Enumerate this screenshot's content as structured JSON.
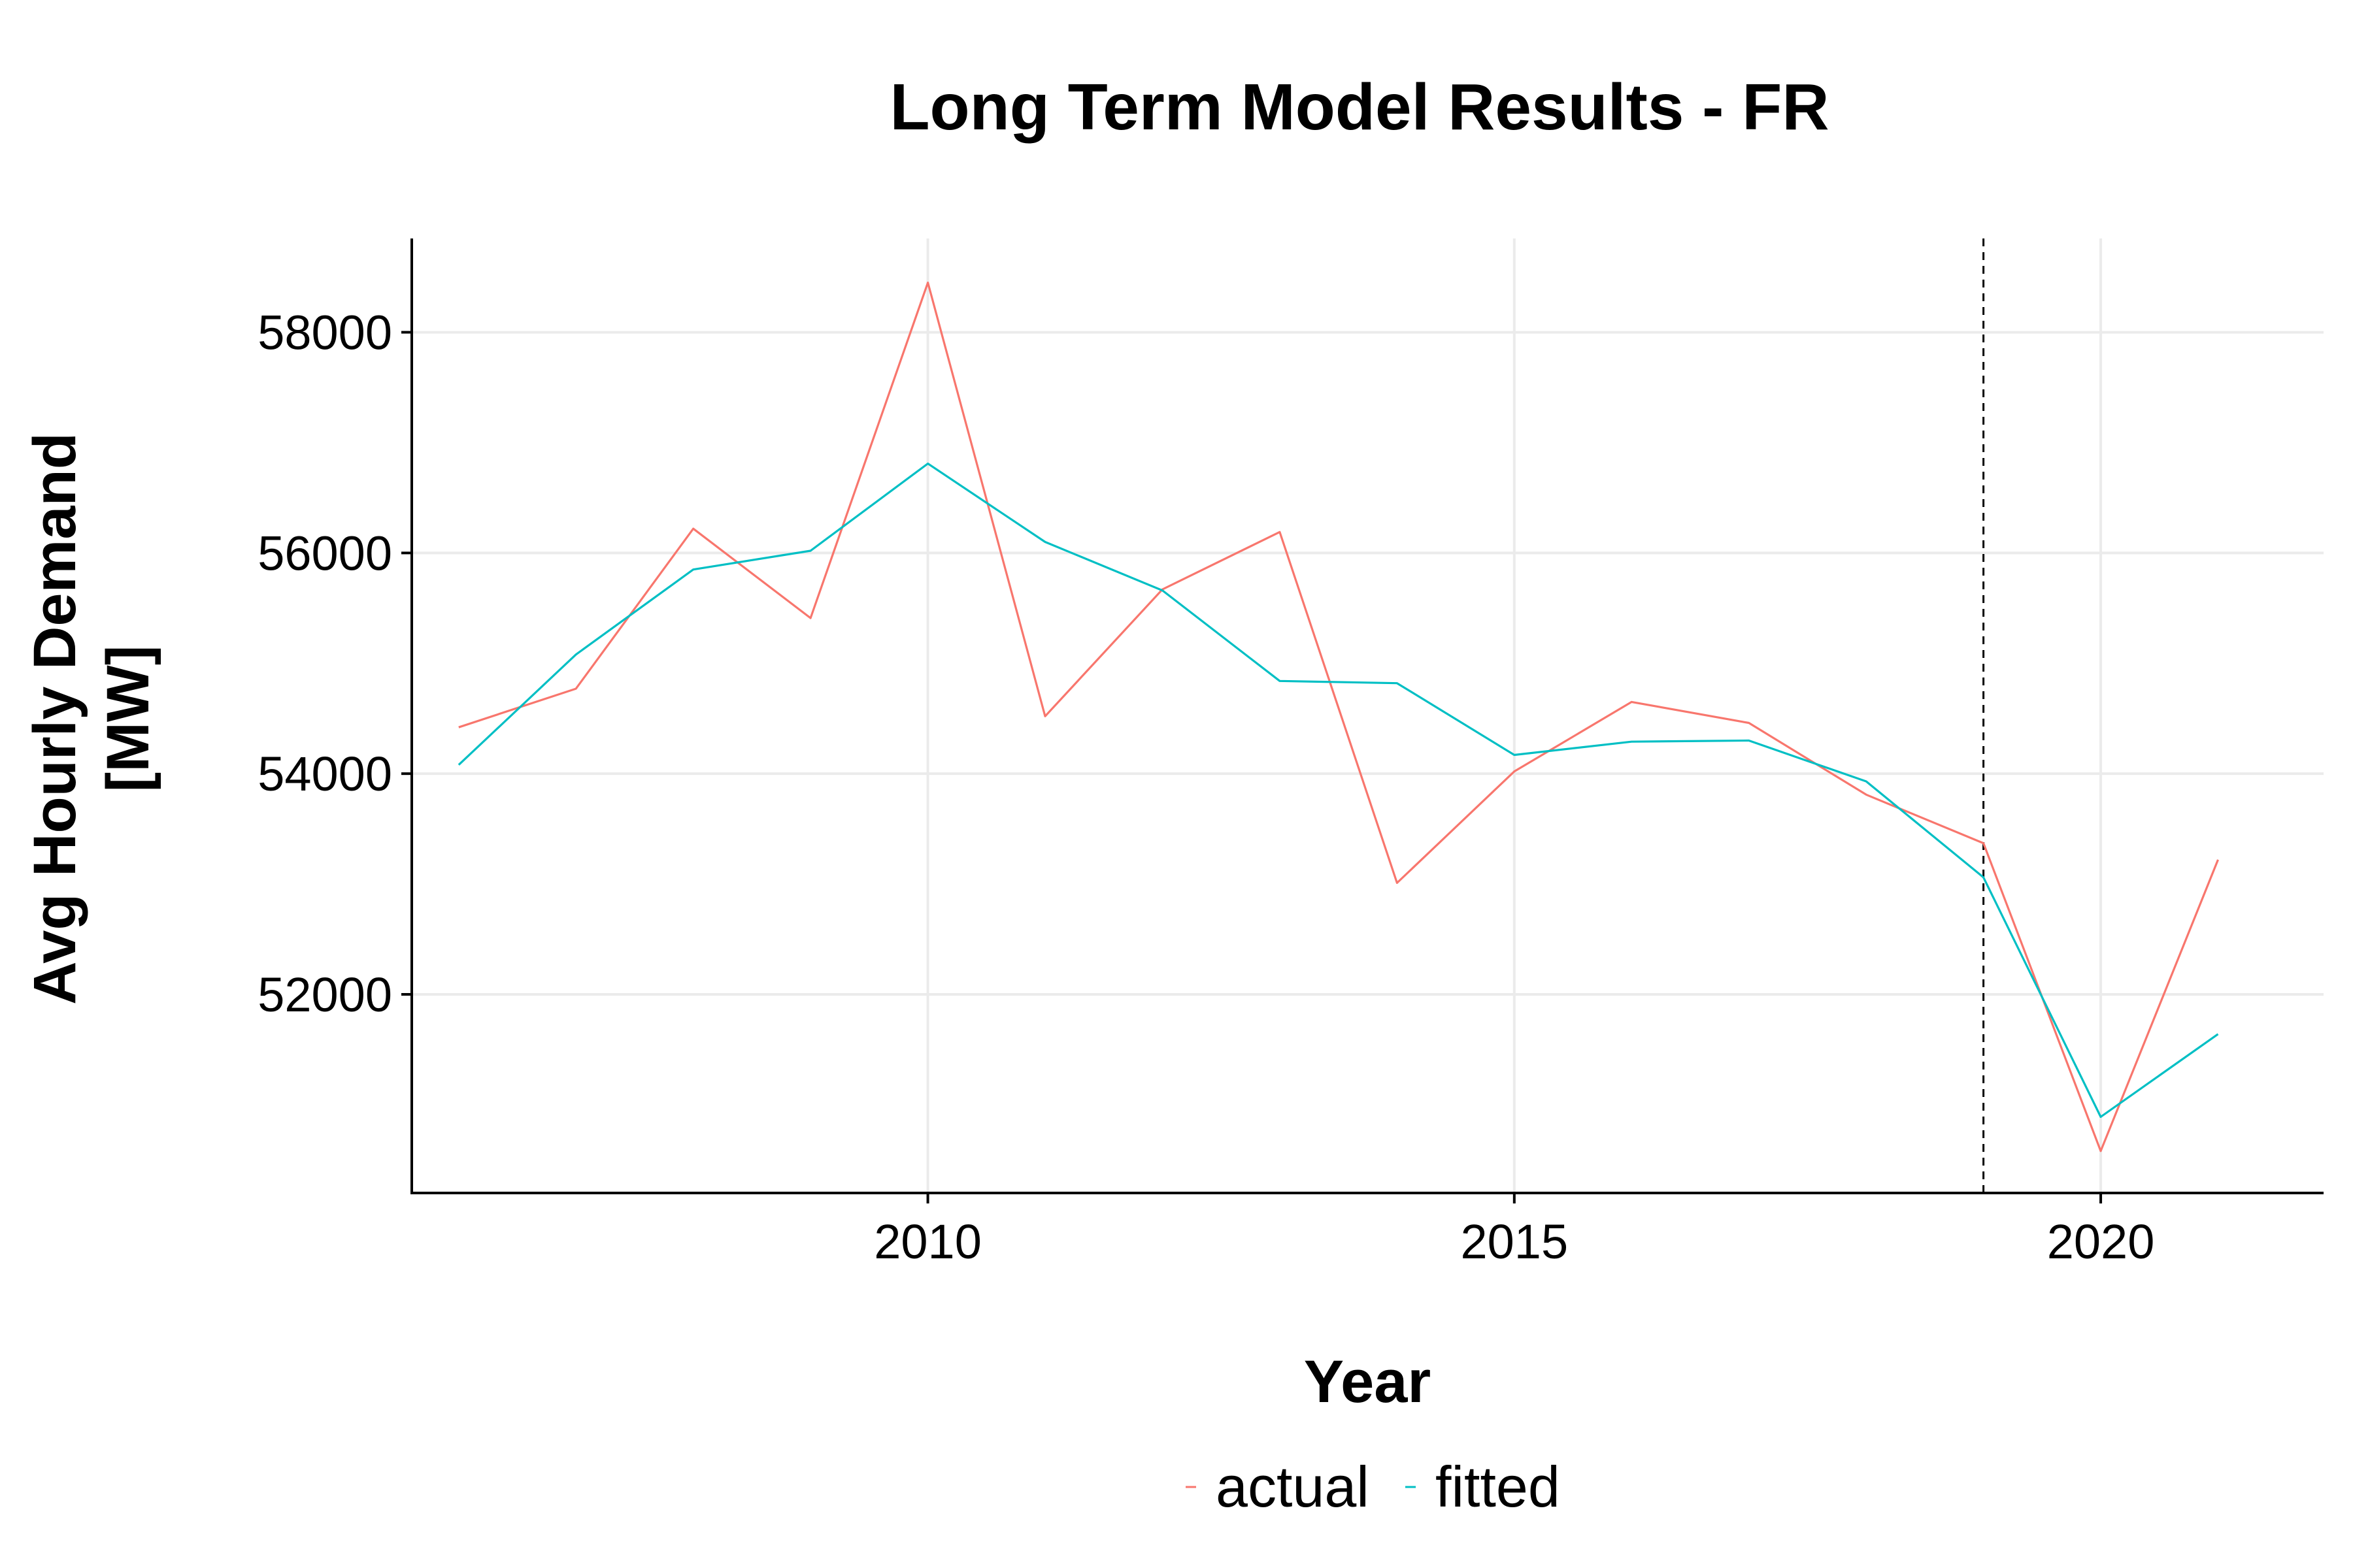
{
  "chart_data": {
    "type": "line",
    "title": "Long Term Model Results - FR",
    "xlabel": "Year",
    "ylabel": [
      "Avg Hourly Demand",
      "[MW]"
    ],
    "xlim": [
      2005.6,
      2021.9
    ],
    "ylim": [
      50200,
      58850
    ],
    "x_ticks": [
      2010,
      2015,
      2020
    ],
    "y_ticks": [
      52000,
      54000,
      56000,
      58000
    ],
    "grid": true,
    "legend_position": "bottom",
    "vline": {
      "x": 2019,
      "style": "dashed",
      "color": "#000000"
    },
    "x": [
      2006,
      2007,
      2008,
      2009,
      2010,
      2011,
      2012,
      2013,
      2014,
      2015,
      2016,
      2017,
      2018,
      2019,
      2020,
      2021
    ],
    "series": [
      {
        "name": "actual",
        "color": "#F8766D",
        "values": [
          54420,
          54770,
          56220,
          55410,
          58450,
          54520,
          55670,
          56190,
          53010,
          54020,
          54650,
          54460,
          53810,
          53370,
          50580,
          53220
        ]
      },
      {
        "name": "fitted",
        "color": "#00BFC4",
        "values": [
          54080,
          55080,
          55850,
          56020,
          56810,
          56100,
          55660,
          54840,
          54820,
          54170,
          54290,
          54300,
          53930,
          53060,
          50890,
          51640
        ]
      }
    ]
  }
}
